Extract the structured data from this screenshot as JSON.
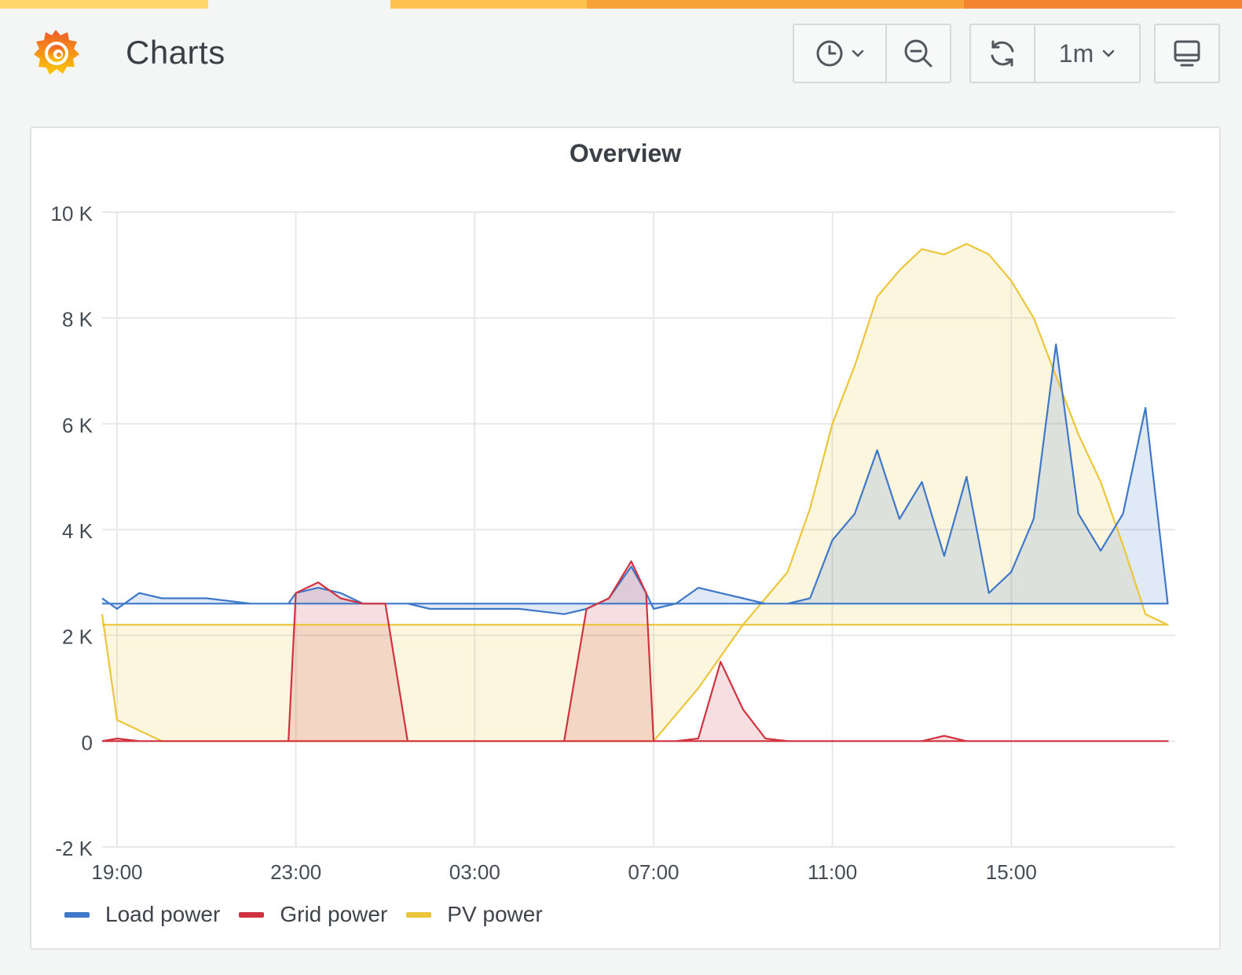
{
  "app": {
    "title": "Charts",
    "logo_icon": "grafana-logo-icon",
    "loading_bar_colors": [
      "#ffd66b",
      "#ffc04d",
      "#f8a33a",
      "#f38531"
    ]
  },
  "toolbar": {
    "time_picker_icon": "clock-icon",
    "time_picker_caret_icon": "chevron-down-icon",
    "zoom_out_icon": "zoom-out-icon",
    "refresh_icon": "refresh-icon",
    "refresh_interval": "1m",
    "refresh_caret_icon": "chevron-down-icon",
    "view_mode_icon": "monitor-icon"
  },
  "panel": {
    "title": "Overview"
  },
  "chart_data": {
    "type": "area",
    "title": "Overview",
    "xlabel": "",
    "ylabel": "",
    "x_ticks": [
      "19:00",
      "23:00",
      "03:00",
      "07:00",
      "11:00",
      "15:00"
    ],
    "y_ticks": [
      "10 K",
      "8 K",
      "6 K",
      "4 K",
      "2 K",
      "0",
      "-2 K"
    ],
    "ylim": [
      -2000,
      10000
    ],
    "xlim": [
      "18:40",
      "18:40 next day"
    ],
    "grid": true,
    "legend_position": "bottom-left",
    "x": [
      "18:40",
      "19:00",
      "19:30",
      "20:00",
      "21:00",
      "22:00",
      "22:50",
      "23:00",
      "23:30",
      "00:00",
      "00:30",
      "01:00",
      "01:30",
      "02:00",
      "02:30",
      "03:00",
      "04:00",
      "05:00",
      "05:30",
      "06:00",
      "06:30",
      "06:50",
      "07:00",
      "07:30",
      "08:00",
      "08:30",
      "09:00",
      "09:30",
      "10:00",
      "10:30",
      "11:00",
      "11:30",
      "12:00",
      "12:30",
      "13:00",
      "13:30",
      "14:00",
      "14:30",
      "15:00",
      "15:30",
      "16:00",
      "16:30",
      "17:00",
      "17:30",
      "18:00",
      "18:30",
      "18:40"
    ],
    "series": [
      {
        "name": "Load power",
        "color": "#3f78c8",
        "values": [
          2700,
          2500,
          2800,
          2700,
          2700,
          2600,
          2600,
          2800,
          2900,
          2800,
          2600,
          2600,
          2600,
          2500,
          2500,
          2500,
          2500,
          2400,
          2500,
          2700,
          3300,
          2800,
          2500,
          2600,
          2900,
          2800,
          2700,
          2600,
          2600,
          2700,
          3800,
          4300,
          5500,
          4200,
          4900,
          3500,
          5000,
          2800,
          3200,
          4200,
          7500,
          4300,
          3600,
          4300,
          6300,
          2600,
          2600
        ]
      },
      {
        "name": "Grid power",
        "color": "#d0323f",
        "values": [
          0,
          50,
          0,
          0,
          0,
          0,
          0,
          2800,
          3000,
          2700,
          2600,
          2600,
          0,
          0,
          0,
          0,
          0,
          0,
          2500,
          2700,
          3400,
          2800,
          0,
          0,
          50,
          1500,
          600,
          50,
          0,
          0,
          0,
          0,
          0,
          0,
          0,
          100,
          0,
          0,
          0,
          0,
          0,
          0,
          0,
          0,
          0,
          0,
          0
        ]
      },
      {
        "name": "PV power",
        "color": "#ecc63a",
        "values": [
          2400,
          400,
          200,
          0,
          0,
          0,
          0,
          0,
          0,
          0,
          0,
          0,
          0,
          0,
          0,
          0,
          0,
          0,
          0,
          0,
          0,
          0,
          0,
          500,
          1000,
          1600,
          2200,
          2700,
          3200,
          4400,
          6000,
          7100,
          8400,
          8900,
          9300,
          9200,
          9400,
          9200,
          8700,
          8000,
          6900,
          5800,
          4900,
          3700,
          2400,
          2200,
          2200
        ]
      }
    ]
  }
}
